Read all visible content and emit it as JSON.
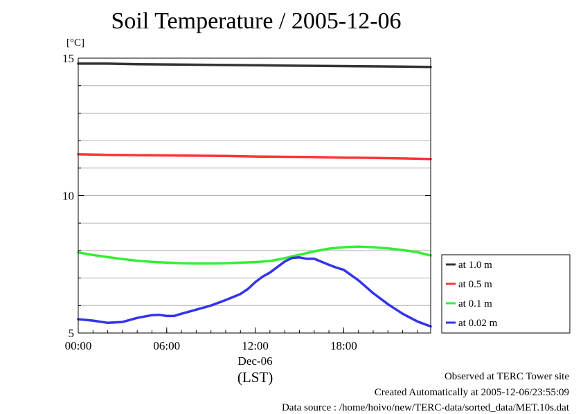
{
  "chart_data": {
    "type": "line",
    "title": "Soil Temperature / 2005-12-06",
    "y_unit": "[°C]",
    "x_date_label": "Dec-06",
    "x_label": "(LST)",
    "x_ticks": [
      "00:00",
      "06:00",
      "12:00",
      "18:00"
    ],
    "y_ticks": [
      5,
      10,
      15
    ],
    "xlim": [
      0,
      23.9
    ],
    "ylim": [
      5,
      15
    ],
    "grid": true,
    "legend_position": "right",
    "series": [
      {
        "name": "at 1.0 m",
        "color": "#333333",
        "x": [
          0,
          2,
          4,
          6,
          8,
          10,
          12,
          14,
          16,
          18,
          20,
          22,
          23.9
        ],
        "values": [
          14.8,
          14.8,
          14.78,
          14.77,
          14.76,
          14.75,
          14.74,
          14.73,
          14.72,
          14.71,
          14.7,
          14.69,
          14.68
        ]
      },
      {
        "name": "at 0.5 m",
        "color": "#ff3333",
        "x": [
          0,
          2,
          4,
          6,
          8,
          10,
          12,
          14,
          16,
          18,
          20,
          22,
          23.9
        ],
        "values": [
          11.5,
          11.48,
          11.47,
          11.46,
          11.45,
          11.44,
          11.42,
          11.41,
          11.4,
          11.38,
          11.37,
          11.35,
          11.33
        ]
      },
      {
        "name": "at 0.1 m",
        "color": "#33ee33",
        "x": [
          0,
          1,
          2,
          3,
          4,
          5,
          6,
          7,
          8,
          9,
          10,
          11,
          12,
          13,
          14,
          15,
          16,
          17,
          18,
          19,
          20,
          21,
          22,
          23,
          23.9
        ],
        "values": [
          7.93,
          7.84,
          7.76,
          7.69,
          7.63,
          7.59,
          7.56,
          7.54,
          7.53,
          7.53,
          7.54,
          7.56,
          7.58,
          7.62,
          7.72,
          7.85,
          7.97,
          8.07,
          8.12,
          8.14,
          8.12,
          8.08,
          8.02,
          7.94,
          7.82
        ]
      },
      {
        "name": "at 0.02 m",
        "color": "#3333ee",
        "x": [
          0,
          1,
          2,
          3,
          4,
          5,
          5.5,
          6,
          6.5,
          7,
          8,
          9,
          10,
          11,
          11.5,
          12,
          12.5,
          13,
          14,
          14.5,
          15,
          15.5,
          16,
          17,
          17.5,
          18,
          19,
          20,
          21,
          22,
          23,
          23.9
        ],
        "values": [
          5.5,
          5.45,
          5.37,
          5.4,
          5.55,
          5.65,
          5.66,
          5.62,
          5.62,
          5.7,
          5.85,
          6.0,
          6.2,
          6.42,
          6.6,
          6.85,
          7.05,
          7.2,
          7.6,
          7.73,
          7.75,
          7.7,
          7.7,
          7.48,
          7.38,
          7.3,
          6.92,
          6.45,
          6.05,
          5.7,
          5.42,
          5.24
        ]
      }
    ]
  },
  "footer": {
    "observed": "Observed at TERC Tower site",
    "created": "Created Automatically at 2005-12-06/23:55:09",
    "source": "Data source : /home/hoivo/new/TERC-data/sorted_data/MET.10s.dat"
  }
}
